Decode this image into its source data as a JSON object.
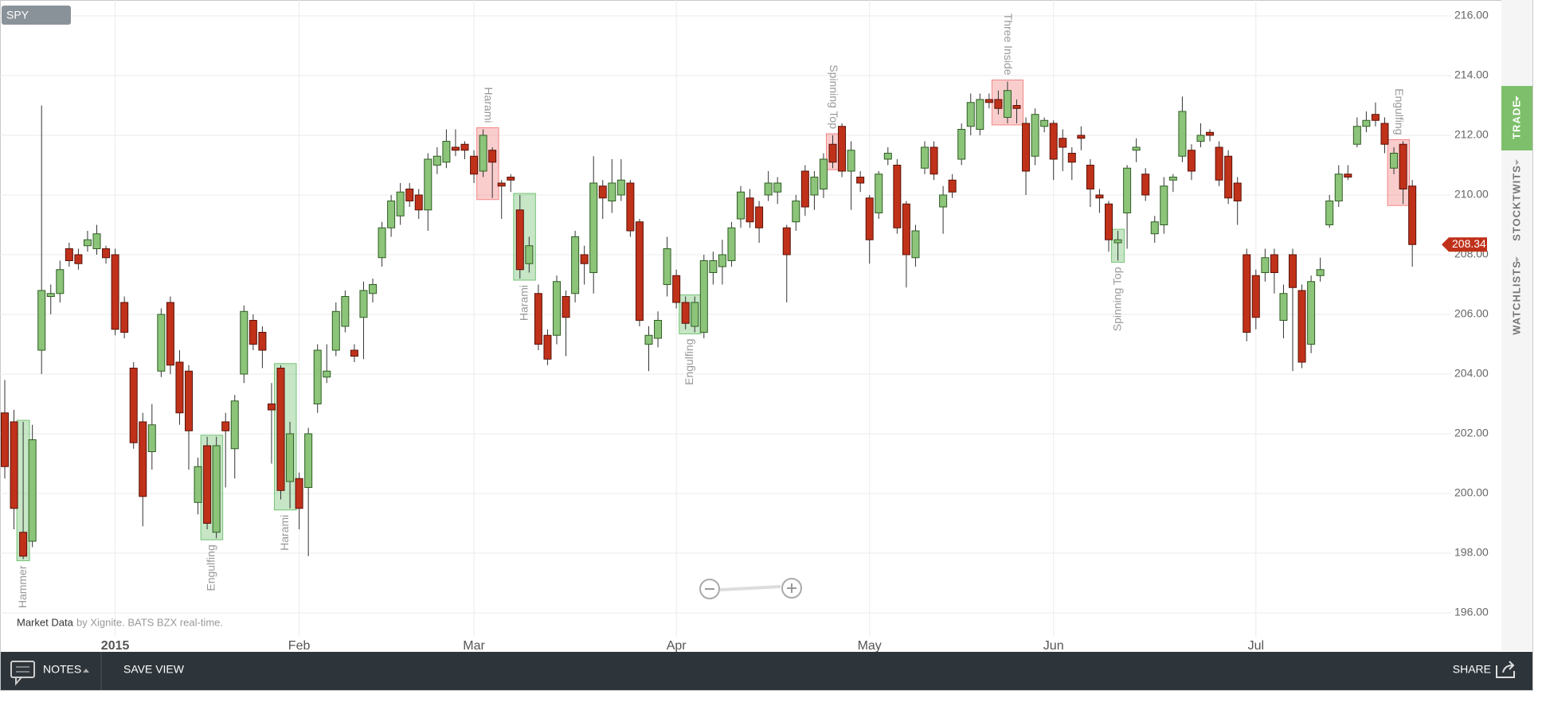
{
  "chart_data": {
    "type": "candlestick",
    "symbol": "SPY",
    "categories": [
      null,
      null,
      null,
      null,
      null,
      null,
      null,
      null,
      null,
      null,
      null,
      null,
      "2015",
      null,
      null,
      null,
      null,
      null,
      null,
      null,
      null,
      null,
      null,
      null,
      null,
      null,
      null,
      null,
      null,
      null,
      null,
      null,
      "Feb",
      null,
      null,
      null,
      null,
      null,
      null,
      null,
      null,
      null,
      null,
      null,
      null,
      null,
      null,
      null,
      null,
      null,
      null,
      "Mar",
      null,
      null,
      null,
      null,
      null,
      null,
      null,
      null,
      null,
      null,
      null,
      null,
      null,
      null,
      null,
      null,
      null,
      null,
      null,
      null,
      null,
      "Apr",
      null,
      null,
      null,
      null,
      null,
      null,
      null,
      null,
      null,
      null,
      null,
      null,
      null,
      null,
      null,
      null,
      null,
      null,
      null,
      null,
      "May",
      null,
      null,
      null,
      null,
      null,
      null,
      null,
      null,
      null,
      null,
      null,
      null,
      null,
      null,
      null,
      null,
      null,
      null,
      null,
      "Jun",
      null,
      null,
      null,
      null,
      null,
      null,
      null,
      null,
      null,
      null,
      null,
      null,
      null,
      null,
      null,
      null,
      null,
      null,
      null,
      null,
      null,
      "Jul",
      null,
      null,
      null,
      null,
      null,
      null,
      null,
      null,
      null,
      null,
      null,
      null,
      null,
      null,
      null,
      null,
      null
    ],
    "open": [
      202.7,
      202.4,
      198.7,
      198.4,
      204.8,
      206.6,
      206.7,
      208.2,
      208.0,
      208.3,
      208.2,
      208.2,
      208.0,
      206.4,
      204.2,
      202.4,
      201.4,
      204.1,
      206.4,
      204.4,
      204.1,
      199.7,
      201.6,
      198.7,
      202.4,
      201.5,
      204.0,
      205.8,
      205.4,
      203.0,
      204.2,
      200.4,
      200.5,
      200.2,
      203.0,
      203.9,
      204.8,
      205.6,
      204.8,
      205.9,
      206.7,
      207.9,
      208.9,
      209.3,
      210.2,
      210.0,
      209.5,
      211.0,
      211.1,
      211.6,
      211.7,
      211.3,
      210.8,
      211.5,
      210.4,
      210.6,
      209.5,
      207.7,
      206.7,
      205.3,
      205.3,
      206.6,
      206.7,
      208.0,
      207.4,
      210.3,
      209.8,
      210.0,
      210.4,
      209.1,
      205.0,
      205.2,
      207.0,
      207.3,
      206.4,
      205.6,
      205.4,
      207.4,
      207.6,
      207.8,
      209.2,
      209.9,
      209.6,
      210.0,
      210.1,
      208.9,
      209.1,
      210.8,
      210.0,
      210.2,
      211.7,
      212.3,
      210.8,
      210.6,
      209.9,
      209.4,
      211.2,
      211.0,
      209.7,
      207.9,
      210.9,
      211.6,
      209.6,
      210.5,
      211.2,
      212.3,
      212.2,
      213.2,
      213.2,
      212.6,
      213.0,
      212.4,
      211.3,
      212.3,
      212.4,
      211.9,
      211.4,
      212.0,
      211.0,
      210.0,
      209.7,
      208.4,
      209.4,
      211.5,
      210.7,
      208.7,
      209.0,
      210.5,
      211.3,
      211.5,
      211.8,
      212.1,
      211.6,
      211.3,
      210.4,
      208.0,
      207.3,
      207.4,
      208.0,
      205.8,
      208.0,
      206.8,
      205.0,
      207.3,
      209.0,
      209.8,
      210.7,
      211.7,
      212.3,
      212.7,
      212.4,
      210.9,
      211.7,
      210.3
    ],
    "high": [
      203.8,
      202.8,
      202.4,
      202.3,
      213.0,
      207.0,
      207.8,
      208.4,
      208.2,
      208.8,
      209.0,
      208.3,
      208.2,
      206.6,
      204.4,
      202.7,
      203.0,
      206.2,
      206.6,
      204.8,
      204.3,
      201.2,
      201.9,
      201.9,
      202.7,
      203.3,
      206.3,
      206.0,
      205.6,
      203.7,
      204.3,
      202.4,
      200.7,
      202.2,
      205.0,
      205.0,
      206.4,
      206.8,
      205.0,
      207.1,
      207.2,
      209.1,
      210.0,
      210.4,
      210.4,
      210.2,
      211.4,
      211.6,
      212.2,
      212.2,
      211.8,
      211.5,
      212.2,
      211.6,
      210.5,
      210.7,
      210.0,
      208.6,
      207.0,
      205.5,
      207.3,
      206.8,
      208.8,
      208.3,
      211.3,
      210.5,
      211.2,
      211.2,
      210.5,
      209.2,
      205.6,
      206.1,
      208.6,
      207.5,
      206.6,
      206.6,
      208.0,
      208.1,
      208.5,
      209.1,
      210.3,
      210.2,
      209.8,
      210.8,
      210.6,
      209.0,
      210.0,
      211.0,
      210.8,
      211.4,
      212.0,
      212.4,
      211.8,
      210.8,
      210.0,
      210.8,
      211.6,
      211.2,
      209.8,
      209.0,
      211.8,
      211.8,
      210.3,
      210.7,
      212.4,
      213.4,
      213.4,
      213.4,
      213.5,
      213.8,
      213.2,
      212.6,
      212.9,
      212.6,
      212.5,
      212.2,
      211.6,
      212.3,
      211.2,
      210.2,
      209.8,
      208.8,
      211.0,
      211.9,
      210.9,
      209.3,
      210.6,
      210.7,
      213.3,
      211.7,
      212.4,
      212.2,
      211.8,
      211.5,
      210.6,
      208.2,
      207.5,
      208.2,
      208.2,
      207.0,
      208.2,
      207.0,
      207.3,
      207.9,
      210.0,
      211.0,
      211.0,
      212.6,
      212.8,
      213.1,
      212.6,
      211.6,
      211.8,
      210.5
    ],
    "low": [
      200.5,
      198.8,
      197.8,
      198.2,
      204.0,
      206.0,
      206.4,
      207.6,
      207.5,
      208.1,
      208.0,
      207.7,
      205.3,
      205.2,
      201.5,
      198.9,
      200.8,
      203.9,
      204.0,
      202.3,
      200.8,
      199.3,
      198.8,
      198.5,
      200.2,
      200.5,
      203.7,
      204.8,
      204.2,
      201.0,
      199.8,
      199.5,
      198.8,
      197.9,
      202.7,
      203.7,
      204.6,
      205.4,
      204.4,
      204.5,
      206.4,
      207.6,
      208.6,
      209.0,
      209.6,
      209.2,
      208.8,
      210.7,
      210.9,
      211.3,
      211.2,
      210.4,
      210.6,
      209.9,
      209.2,
      210.1,
      207.2,
      207.4,
      204.8,
      204.3,
      205.0,
      204.6,
      206.4,
      207.0,
      206.7,
      209.2,
      209.4,
      209.8,
      208.6,
      205.6,
      204.1,
      204.9,
      206.6,
      206.2,
      205.5,
      205.4,
      205.2,
      207.0,
      207.0,
      207.6,
      208.9,
      208.9,
      208.4,
      209.8,
      209.7,
      206.4,
      208.8,
      209.3,
      209.5,
      209.9,
      210.9,
      210.6,
      209.5,
      210.1,
      207.7,
      209.2,
      211.0,
      208.7,
      206.9,
      207.6,
      210.7,
      210.5,
      208.7,
      209.9,
      211.0,
      212.0,
      212.0,
      212.9,
      212.7,
      212.4,
      212.4,
      210.0,
      211.0,
      212.1,
      210.5,
      210.8,
      210.5,
      211.5,
      209.6,
      209.4,
      208.1,
      207.8,
      208.2,
      211.1,
      209.8,
      208.4,
      208.7,
      210.1,
      211.1,
      210.5,
      211.6,
      211.8,
      210.3,
      209.7,
      209.0,
      205.1,
      205.5,
      207.1,
      206.7,
      205.2,
      204.1,
      204.2,
      204.7,
      207.1,
      208.9,
      209.6,
      210.5,
      211.6,
      212.1,
      212.3,
      211.4,
      210.7,
      209.7,
      207.6
    ],
    "close": [
      200.9,
      199.5,
      197.9,
      201.8,
      206.8,
      206.7,
      207.5,
      207.8,
      207.7,
      208.5,
      208.7,
      207.9,
      205.5,
      205.4,
      201.7,
      199.9,
      202.3,
      206.0,
      204.3,
      202.7,
      202.1,
      200.9,
      199.0,
      201.6,
      202.1,
      203.1,
      206.1,
      205.0,
      204.8,
      202.8,
      200.1,
      202.0,
      199.5,
      202.0,
      204.8,
      204.1,
      206.1,
      206.6,
      204.6,
      206.8,
      207.0,
      208.9,
      209.8,
      210.1,
      209.8,
      209.5,
      211.2,
      211.3,
      211.8,
      211.5,
      211.5,
      210.7,
      212.0,
      211.1,
      210.3,
      210.5,
      207.5,
      208.3,
      205.0,
      204.5,
      207.1,
      205.9,
      208.6,
      207.7,
      210.4,
      209.9,
      210.4,
      210.5,
      208.8,
      205.8,
      205.3,
      205.8,
      208.2,
      206.4,
      205.7,
      206.4,
      207.8,
      207.8,
      208.0,
      208.9,
      210.1,
      209.1,
      208.9,
      210.4,
      210.4,
      208.0,
      209.8,
      209.6,
      210.6,
      211.2,
      211.1,
      210.8,
      211.5,
      210.4,
      208.5,
      210.7,
      211.4,
      208.9,
      208.0,
      208.8,
      211.6,
      210.7,
      210.0,
      210.1,
      212.2,
      213.1,
      213.2,
      213.1,
      212.9,
      213.5,
      212.9,
      210.8,
      212.7,
      212.5,
      211.2,
      211.6,
      211.1,
      211.9,
      210.2,
      209.9,
      208.5,
      208.5,
      210.9,
      211.6,
      210.0,
      209.1,
      210.3,
      210.6,
      212.8,
      210.8,
      212.0,
      212.0,
      210.5,
      209.9,
      209.8,
      205.4,
      205.9,
      207.9,
      207.4,
      206.7,
      206.9,
      204.4,
      207.1,
      207.5,
      209.8,
      210.7,
      210.6,
      212.3,
      212.5,
      212.5,
      211.7,
      211.4,
      210.2,
      208.34
    ],
    "up_color": "#8cc47a",
    "down_color": "#c0311a",
    "ylim": [
      195.5,
      216.5
    ],
    "yticks": [
      {
        "value": 196,
        "label": "196.00"
      },
      {
        "value": 198,
        "label": "198.00"
      },
      {
        "value": 200,
        "label": "200.00"
      },
      {
        "value": 202,
        "label": "202.00"
      },
      {
        "value": 204,
        "label": "204.00"
      },
      {
        "value": 206,
        "label": "206.00"
      },
      {
        "value": 208,
        "label": "208.00"
      },
      {
        "value": 210,
        "label": "210.00"
      },
      {
        "value": 212,
        "label": "212.00"
      },
      {
        "value": 214,
        "label": "214.00"
      },
      {
        "value": 216,
        "label": "216.00"
      }
    ],
    "grid": true,
    "last_price_color": "#c0311a",
    "patterns": [
      {
        "label": "Hammer",
        "color": "#5cb85c"
      },
      {
        "label": "Engulfing",
        "color": "#5cb85c"
      },
      {
        "label": "Harami",
        "color": "#5cb85c"
      },
      {
        "label": "Harami",
        "color": "#f07070"
      },
      {
        "label": "Harami",
        "color": "#5cb85c"
      },
      {
        "label": "Engulfing",
        "color": "#5cb85c"
      },
      {
        "label": "Spinning Top",
        "color": "#f07070"
      },
      {
        "label": "Three Inside",
        "color": "#f07070"
      },
      {
        "label": "Spinning Top",
        "color": "#5cb85c"
      },
      {
        "label": "Engulfing",
        "color": "#f07070"
      }
    ],
    "attribution": {
      "link": "Market Data",
      "text": "by Xignite. BATS BZX real-time."
    }
  },
  "toolbar": {
    "notes": "NOTES",
    "save": "SAVE VIEW",
    "share": "SHARE"
  },
  "sidebar": {
    "tabs": [
      "TRADE",
      "STOCKTWITS",
      "WATCHLISTS"
    ]
  }
}
